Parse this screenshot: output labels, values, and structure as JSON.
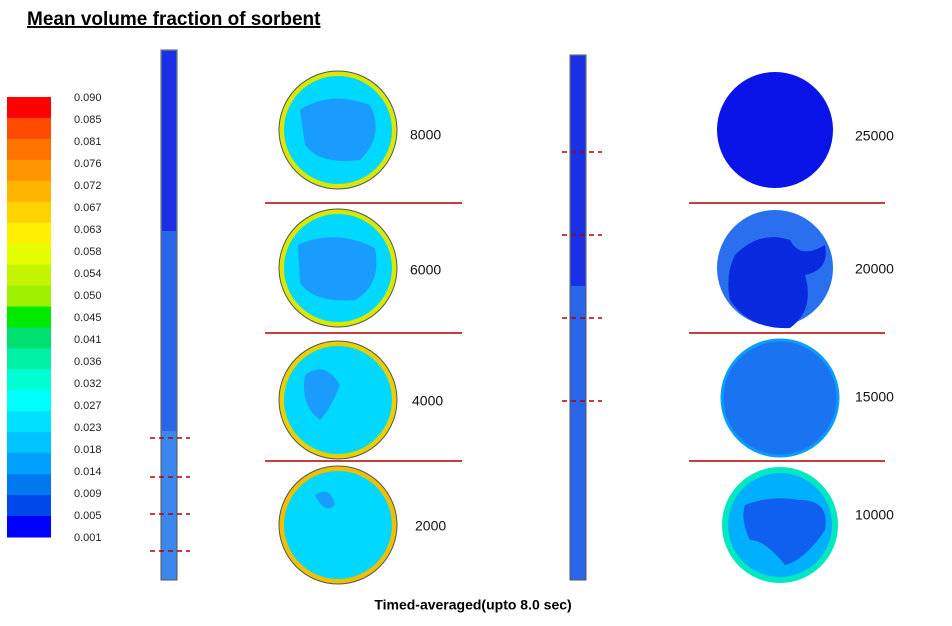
{
  "title": "Mean volume fraction of sorbent",
  "colorbar": {
    "labels": [
      "0.090",
      "0.085",
      "0.081",
      "0.076",
      "0.072",
      "0.067",
      "0.063",
      "0.058",
      "0.054",
      "0.050",
      "0.045",
      "0.041",
      "0.036",
      "0.032",
      "0.027",
      "0.023",
      "0.018",
      "0.014",
      "0.009",
      "0.005",
      "0.001"
    ],
    "colors": [
      "#ff0000",
      "#ff4a00",
      "#ff7400",
      "#ff9600",
      "#ffb400",
      "#ffd200",
      "#fff000",
      "#e6ff00",
      "#c3f500",
      "#9ef000",
      "#00ea00",
      "#00e070",
      "#00f0a6",
      "#00ffd2",
      "#00ffff",
      "#00e0ff",
      "#00c4ff",
      "#00a0ff",
      "#0078f0",
      "#0048ea",
      "#0000ff"
    ]
  },
  "left_panel": {
    "labels": [
      "8000",
      "6000",
      "4000",
      "2000"
    ]
  },
  "right_panel": {
    "labels": [
      "25000",
      "20000",
      "15000",
      "10000"
    ]
  },
  "caption": "Timed-averaged(upto 8.0 sec)"
}
